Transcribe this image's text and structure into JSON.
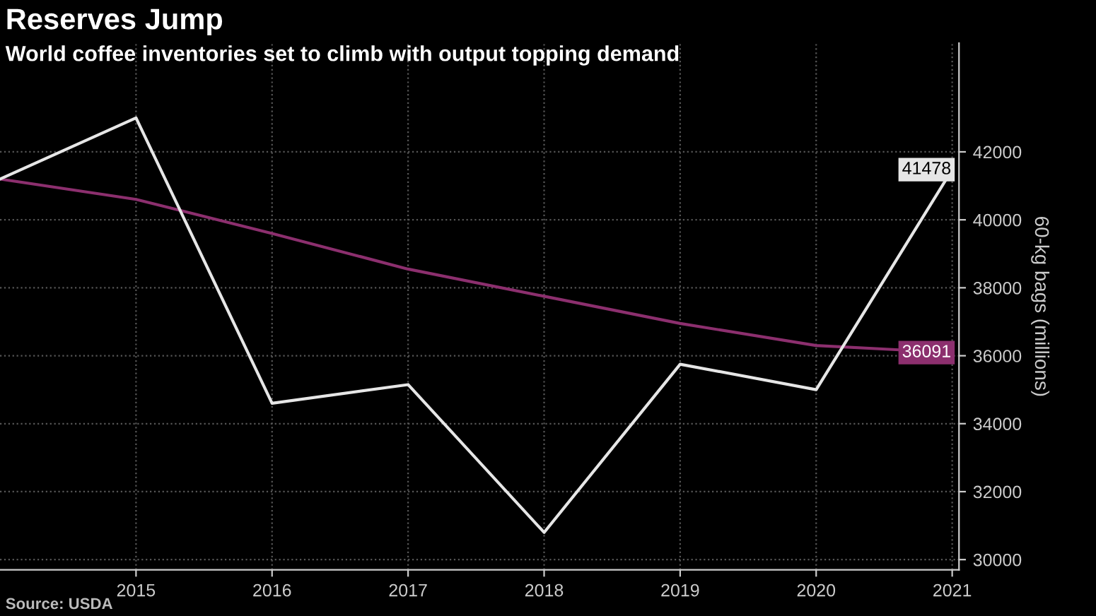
{
  "chart_data": {
    "type": "line",
    "title": "Reserves Jump",
    "subtitle": "World coffee inventories set to climb with output topping demand",
    "ylabel": "60-kg bags (millions)",
    "annotations": [
      "Source: USDA"
    ],
    "x": [
      2014,
      2015,
      2016,
      2017,
      2018,
      2019,
      2020,
      2021
    ],
    "series": [
      {
        "color": "#8c2f6e",
        "x": [
          2014,
          2015,
          2016,
          2017,
          2018,
          2019,
          2020,
          2021
        ],
        "values": [
          41200,
          40600,
          39600,
          38550,
          37750,
          36950,
          36300,
          36091
        ],
        "value_labels": [
          null,
          null,
          null,
          null,
          null,
          null,
          null,
          "36091"
        ]
      },
      {
        "color": "#e6e6e6",
        "values": [
          41200,
          43000,
          34600,
          35150,
          30800,
          35750,
          35000,
          41478
        ],
        "value_labels": [
          null,
          null,
          null,
          null,
          null,
          null,
          null,
          "41478"
        ]
      }
    ],
    "xlim": [
      2014,
      2021.05
    ],
    "ylim": [
      29700,
      45200
    ],
    "xticks": [
      2015,
      2016,
      2017,
      2018,
      2019,
      2020,
      2021
    ],
    "yticks": [
      30000,
      32000,
      34000,
      36000,
      38000,
      40000,
      42000
    ],
    "grid": true,
    "legend": false,
    "marker": "none",
    "line_style": "solid"
  }
}
